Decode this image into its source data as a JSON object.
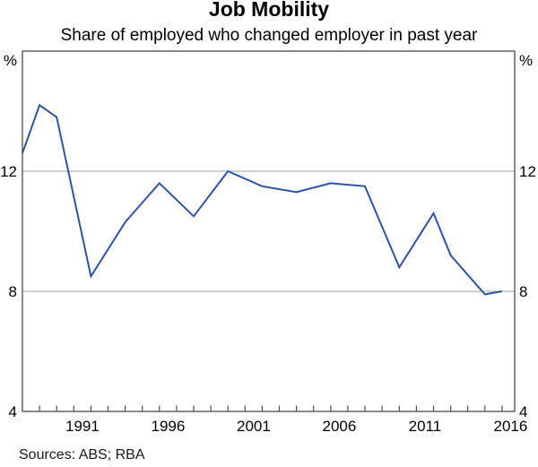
{
  "chart_data": {
    "type": "line",
    "title": "Job Mobility",
    "subtitle": "Share of employed who changed employer in past year",
    "sources": "Sources: ABS; RBA",
    "x": [
      1988,
      1989,
      1990,
      1992,
      1994,
      1996,
      1998,
      2000,
      2002,
      2004,
      2006,
      2008,
      2010,
      2012,
      2013,
      2015,
      2016
    ],
    "series": [
      {
        "name": "Share of employed who changed employer in past year",
        "values": [
          12.6,
          14.2,
          13.8,
          8.5,
          10.3,
          11.6,
          10.5,
          12.0,
          11.5,
          11.3,
          11.6,
          11.5,
          8.8,
          10.6,
          9.2,
          7.9,
          8.0
        ]
      }
    ],
    "xlim": [
      1988,
      2016.74
    ],
    "ylim": [
      4,
      16
    ],
    "y_axis_unit_left": "%",
    "y_axis_unit_right": "%",
    "y_tick_labels": [
      "4",
      "8",
      "12"
    ],
    "y_tick_values": [
      4,
      8,
      12
    ],
    "y_gridlines": [
      8,
      12
    ],
    "x_axis_labels": [
      "1991",
      "1996",
      "2001",
      "2006",
      "2011",
      "2016"
    ],
    "x_axis_label_years": [
      1991,
      1996,
      2001,
      2006,
      2011,
      2016
    ],
    "x_minor_tick_interval_years": 1,
    "grid": "horizontal-only",
    "legend_position": "none",
    "line_color": "#2d53a2",
    "grid_color": "#b5b5b5",
    "axis_color": "#4c4c4c",
    "text_color": "#000000"
  }
}
